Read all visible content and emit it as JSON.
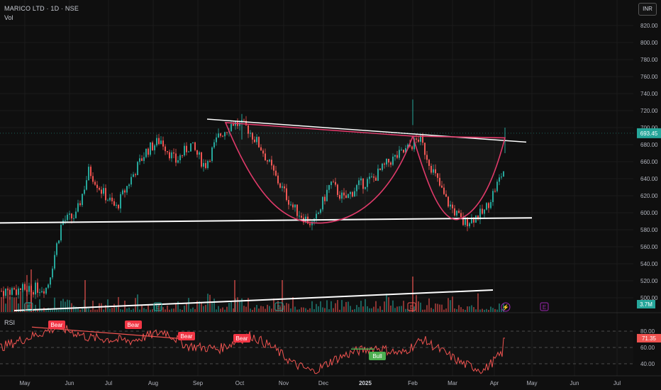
{
  "header": {
    "title": "MARICO LTD · 1D · NSE",
    "vol_label": "Vol",
    "currency": "INR"
  },
  "rsi_panel": {
    "label": "RSI",
    "current_value": "71.35",
    "levels": [
      "80.00",
      "60.00",
      "40.00"
    ]
  },
  "volume": {
    "current_value": "3.7M"
  },
  "colors": {
    "bg": "#0f0f0f",
    "up": "#26a69a",
    "down": "#ef5350",
    "rsi": "#ef5350",
    "pattern": "#e03a6a",
    "trendline": "#ffffff",
    "price_tag": "#26a69a",
    "signal_bear": "#f23645",
    "signal_bull": "#4caf50",
    "event_e": "#9c27b0"
  },
  "chart_data": {
    "type": "candlestick",
    "price_axis": {
      "ticks": [
        "820.00",
        "800.00",
        "780.00",
        "760.00",
        "740.00",
        "720.00",
        "700.00",
        "680.00",
        "660.00",
        "640.00",
        "620.00",
        "600.00",
        "580.00",
        "560.00",
        "540.00",
        "520.00",
        "500.00"
      ],
      "range": [
        500,
        822
      ]
    },
    "time_axis": {
      "ticks": [
        "May",
        "Jun",
        "Jul",
        "Aug",
        "Sep",
        "Oct",
        "Nov",
        "Dec",
        "2025",
        "Feb",
        "Mar",
        "Apr",
        "May",
        "Jun",
        "Jul"
      ]
    },
    "last_price": "693.45",
    "price_path": [
      [
        "May",
        508
      ],
      [
        "May",
        512
      ],
      [
        "May",
        590
      ],
      [
        "Jun",
        596
      ],
      [
        "Jun",
        650
      ],
      [
        "Jun",
        625
      ],
      [
        "Jul",
        605
      ],
      [
        "Jul",
        640
      ],
      [
        "Jul",
        672
      ],
      [
        "Aug",
        686
      ],
      [
        "Aug",
        660
      ],
      [
        "Aug",
        680
      ],
      [
        "Sep",
        655
      ],
      [
        "Sep",
        690
      ],
      [
        "Sep",
        706
      ],
      [
        "Oct",
        700
      ],
      [
        "Oct",
        675
      ],
      [
        "Oct",
        640
      ],
      [
        "Nov",
        605
      ],
      [
        "Nov",
        585
      ],
      [
        "Dec",
        635
      ],
      [
        "Dec",
        615
      ],
      [
        "Dec",
        632
      ],
      [
        "2025",
        640
      ],
      [
        "2025",
        660
      ],
      [
        "2025",
        672
      ],
      [
        "Feb",
        688
      ],
      [
        "Feb",
        650
      ],
      [
        "Feb",
        615
      ],
      [
        "Mar",
        588
      ],
      [
        "Mar",
        600
      ],
      [
        "Apr",
        650
      ],
      [
        "Apr",
        693
      ]
    ],
    "high_wicks": [
      {
        "x": "Oct",
        "value": 716
      },
      {
        "x": "Feb",
        "value": 733
      },
      {
        "x": "Apr",
        "value": 700
      }
    ],
    "rsi_path": [
      [
        "May",
        60
      ],
      [
        "May",
        85
      ],
      [
        "Jun",
        72
      ],
      [
        "Jul",
        68
      ],
      [
        "Aug",
        80
      ],
      [
        "Aug",
        62
      ],
      [
        "Sep",
        58
      ],
      [
        "Oct",
        75
      ],
      [
        "Oct",
        60
      ],
      [
        "Nov",
        40
      ],
      [
        "Nov",
        30
      ],
      [
        "Dec",
        45
      ],
      [
        "Dec",
        55
      ],
      [
        "2025",
        60
      ],
      [
        "2025",
        52
      ],
      [
        "Feb",
        70
      ],
      [
        "Feb",
        55
      ],
      [
        "Mar",
        40
      ],
      [
        "Mar",
        32
      ],
      [
        "Apr",
        55
      ],
      [
        "Apr",
        71.35
      ]
    ],
    "signals": [
      {
        "type": "bear",
        "label": "Bear",
        "x": "Jun"
      },
      {
        "type": "bear",
        "label": "Bear",
        "x": "Aug"
      },
      {
        "type": "bear",
        "label": "Bear",
        "x": "Sep"
      },
      {
        "type": "bear",
        "label": "Bear",
        "x": "Oct"
      },
      {
        "type": "bull",
        "label": "Bull",
        "x": "2025"
      }
    ],
    "events": [
      "E",
      "E",
      "E",
      "E",
      "E",
      "E"
    ],
    "annotations": [
      "descending resistance trendline",
      "horizontal support line",
      "cup and handle arcs",
      "volume trendline"
    ]
  }
}
